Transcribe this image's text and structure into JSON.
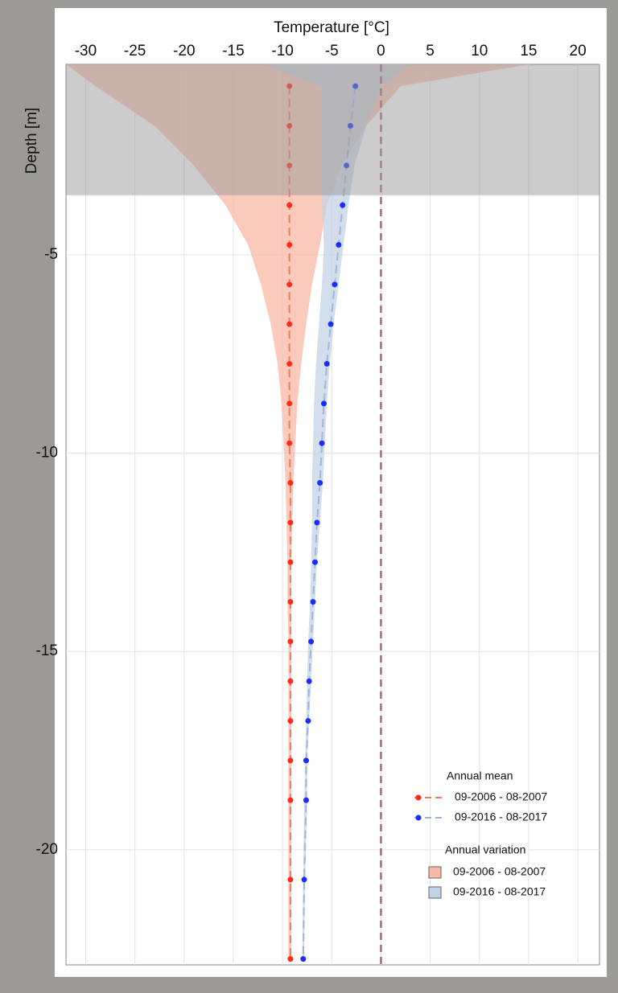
{
  "chart_data": {
    "type": "profile",
    "xlabel": "Temperature [°C]",
    "ylabel": "Depth [m]",
    "xlim": [
      -32,
      22.2
    ],
    "xticks": [
      -30,
      -25,
      -20,
      -15,
      -10,
      -5,
      0,
      5,
      10,
      15,
      20
    ],
    "ylim": [
      -22.9,
      -0.2
    ],
    "yticks": [
      -5,
      -10,
      -15,
      -20
    ],
    "grid": true,
    "vline": 0,
    "shade_to": -3.5,
    "depths": [
      -0.75,
      -1.75,
      -2.75,
      -3.75,
      -4.75,
      -5.75,
      -6.75,
      -7.75,
      -8.75,
      -9.75,
      -10.75,
      -11.75,
      -12.75,
      -13.75,
      -14.75,
      -15.75,
      -16.75,
      -17.75,
      -18.75,
      -20.75,
      -22.75
    ],
    "band_depths": [
      -0.2,
      -0.75,
      -1.75,
      -2.75,
      -3.75,
      -4.75,
      -5.75,
      -6.75,
      -7.75,
      -8.75,
      -9.75,
      -10.75,
      -11.75,
      -12.75,
      -13.75,
      -14.75,
      -15.75,
      -16.75,
      -17.75,
      -18.75,
      -20.75,
      -22.75
    ],
    "legend": {
      "mean_title": "Annual mean",
      "variation_title": "Annual variation",
      "position": "bottom-right"
    },
    "series": [
      {
        "name": "09-2006 - 08-2007",
        "color": "#ff2a1a",
        "line_color": "#f07a62",
        "band_color": "#f8b9a6",
        "values": [
          -9.3,
          -9.3,
          -9.3,
          -9.3,
          -9.3,
          -9.3,
          -9.3,
          -9.3,
          -9.3,
          -9.3,
          -9.2,
          -9.2,
          -9.2,
          -9.2,
          -9.2,
          -9.2,
          -9.2,
          -9.2,
          -9.2,
          -9.2,
          -9.2
        ],
        "band_min": [
          -32,
          -29,
          -23,
          -19,
          -15.8,
          -13.5,
          -12.2,
          -11.2,
          -10.5,
          -10.1,
          -9.9,
          -9.7,
          -9.6,
          -9.5,
          -9.5,
          -9.4,
          -9.4,
          -9.4,
          -9.4,
          -9.4,
          -9.4,
          -9.4
        ],
        "band_max": [
          15,
          2,
          -1.5,
          -4,
          -5.5,
          -6.2,
          -7,
          -7.6,
          -8.1,
          -8.5,
          -8.7,
          -8.9,
          -9,
          -9.1,
          -9.1,
          -9.1,
          -9.1,
          -9.1,
          -9.1,
          -9.1,
          -9.1,
          -9.1
        ]
      },
      {
        "name": "09-2016 - 08-2017",
        "color": "#1a2cff",
        "line_color": "#9fb6d8",
        "band_color": "#c3d3e6",
        "values": [
          -2.6,
          -3.1,
          -3.5,
          -3.9,
          -4.3,
          -4.7,
          -5.1,
          -5.5,
          -5.8,
          -6.0,
          -6.2,
          -6.5,
          -6.7,
          -6.9,
          -7.1,
          -7.3,
          -7.4,
          -7.6,
          -7.6,
          -7.8,
          -7.9
        ],
        "band_min": [
          -12,
          -6,
          -6,
          -6,
          -6,
          -5.8,
          -6,
          -6.3,
          -6.6,
          -6.8,
          -6.9,
          -7,
          -7,
          -7.1,
          -7.2,
          -7.4,
          -7.5,
          -7.6,
          -7.7,
          -7.8,
          -7.9,
          -8
        ],
        "band_max": [
          3,
          0,
          -1.5,
          -2.7,
          -3.3,
          -3.8,
          -4.3,
          -4.8,
          -5.2,
          -5.5,
          -5.7,
          -5.9,
          -6.2,
          -6.5,
          -6.7,
          -6.9,
          -7.1,
          -7.3,
          -7.5,
          -7.5,
          -7.7,
          -7.8
        ]
      }
    ]
  }
}
